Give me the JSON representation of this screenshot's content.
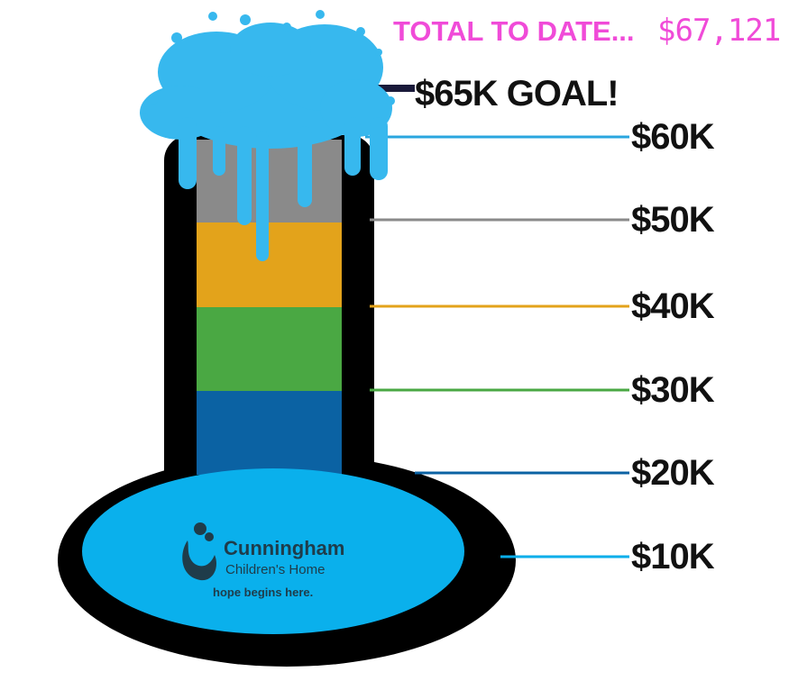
{
  "total": {
    "label": "TOTAL TO DATE...",
    "amount": "$67,121",
    "color": "#f04bd8"
  },
  "goal": {
    "label": "$65K GOAL!"
  },
  "ticks": [
    {
      "label": "$60K",
      "color": "#2aa6df"
    },
    {
      "label": "$50K",
      "color": "#8a8a8a"
    },
    {
      "label": "$40K",
      "color": "#e3a31b"
    },
    {
      "label": "$30K",
      "color": "#4aa843"
    },
    {
      "label": "$20K",
      "color": "#0b62a3"
    },
    {
      "label": "$10K",
      "color": "#0aaeea"
    }
  ],
  "logo": {
    "name": "Cunningham",
    "subtitle": "Children's Home",
    "tagline": "hope begins here."
  },
  "colors": {
    "water": "#0ab0ec",
    "splash": "#37b8ee",
    "outline": "#000000"
  }
}
